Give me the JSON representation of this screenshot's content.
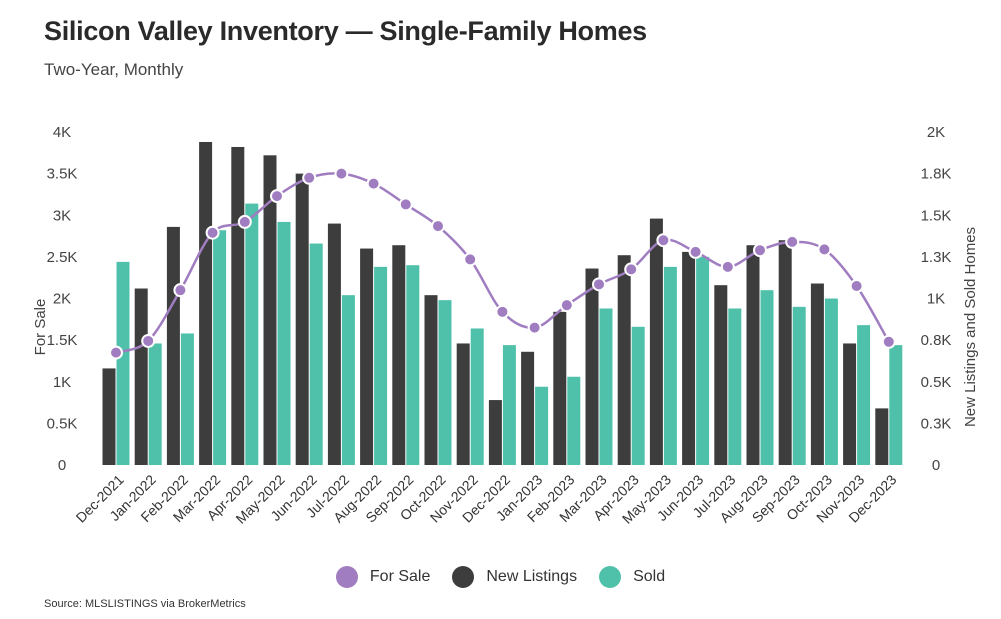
{
  "header": {
    "title": "Silicon Valley Inventory — Single-Family Homes",
    "subtitle": "Two-Year, Monthly"
  },
  "source": "Source:  MLSLISTINGS via BrokerMetrics",
  "colors": {
    "for_sale": "#a07cc0",
    "new_listings": "#3d3d3d",
    "sold": "#4fc1aa"
  },
  "chart_data": {
    "type": "bar",
    "categories": [
      "Dec-2021",
      "Jan-2022",
      "Feb-2022",
      "Mar-2022",
      "Apr-2022",
      "May-2022",
      "Jun-2022",
      "Jul-2022",
      "Aug-2022",
      "Sep-2022",
      "Oct-2022",
      "Nov-2022",
      "Dec-2022",
      "Jan-2023",
      "Feb-2023",
      "Mar-2023",
      "Apr-2023",
      "May-2023",
      "Jun-2023",
      "Jul-2023",
      "Aug-2023",
      "Sep-2023",
      "Oct-2023",
      "Nov-2023",
      "Dec-2023"
    ],
    "left_axis": {
      "label": "For Sale",
      "range": [
        0,
        4000
      ],
      "ticks": [
        "0",
        "0.5K",
        "1K",
        "1.5K",
        "2K",
        "2.5K",
        "3K",
        "3.5K",
        "4K"
      ]
    },
    "right_axis": {
      "label": "New Listings and Sold Homes",
      "range": [
        0,
        2000
      ],
      "ticks": [
        "0",
        "0.3K",
        "0.5K",
        "0.8K",
        "1K",
        "1.3K",
        "1.5K",
        "1.8K",
        "2K"
      ]
    },
    "grid": false,
    "legend_position": "bottom",
    "series": [
      {
        "name": "For Sale",
        "type": "line",
        "axis": "left",
        "values": [
          1350,
          1490,
          2100,
          2790,
          2920,
          3230,
          3450,
          3500,
          3380,
          3130,
          2870,
          2470,
          1840,
          1650,
          1920,
          2170,
          2350,
          2700,
          2560,
          2380,
          2580,
          2680,
          2590,
          2150,
          1480
        ]
      },
      {
        "name": "New Listings",
        "type": "bar",
        "axis": "right",
        "values": [
          580,
          1060,
          1430,
          1940,
          1910,
          1860,
          1750,
          1450,
          1300,
          1320,
          1020,
          730,
          390,
          680,
          920,
          1180,
          1260,
          1480,
          1280,
          1080,
          1320,
          1350,
          1090,
          730,
          340
        ]
      },
      {
        "name": "Sold",
        "type": "bar",
        "axis": "right",
        "values": [
          1220,
          730,
          790,
          1410,
          1570,
          1460,
          1330,
          1020,
          1190,
          1200,
          990,
          820,
          720,
          470,
          530,
          940,
          830,
          1190,
          1250,
          940,
          1050,
          950,
          1000,
          840,
          720
        ]
      }
    ]
  }
}
